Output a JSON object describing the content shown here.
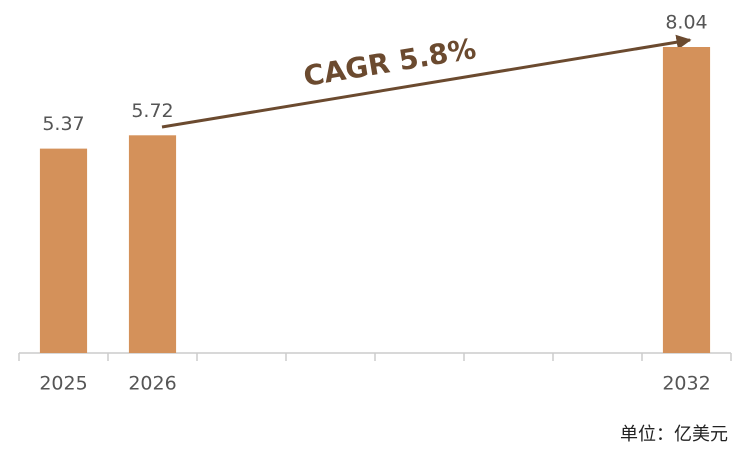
{
  "chart_data": {
    "type": "bar",
    "categories": [
      "2025",
      "2026",
      null,
      null,
      null,
      null,
      null,
      "2032"
    ],
    "values": [
      5.37,
      5.72,
      null,
      null,
      null,
      null,
      null,
      8.04
    ],
    "color": "#d4915a",
    "ylim": [
      0,
      8.04
    ],
    "annotation": "CAGR 5.8%",
    "unit_label": "单位：亿美元"
  }
}
